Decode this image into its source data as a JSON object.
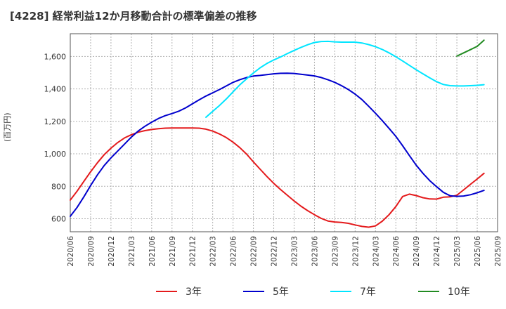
{
  "chart_data": {
    "type": "line",
    "title": "[4228]  経常利益12か月移動合計の標準偏差の推移",
    "ylabel": "(百万円)",
    "xlabel": "",
    "ylim": [
      520,
      1740
    ],
    "yticks": [
      600,
      800,
      1000,
      1200,
      1400,
      1600
    ],
    "ytick_labels": [
      "600",
      "800",
      "1,000",
      "1,200",
      "1,400",
      "1,600"
    ],
    "xticks": [
      "2020/06",
      "2020/09",
      "2020/12",
      "2021/03",
      "2021/06",
      "2021/09",
      "2021/12",
      "2022/03",
      "2022/06",
      "2022/09",
      "2022/12",
      "2023/03",
      "2023/06",
      "2023/09",
      "2023/12",
      "2024/03",
      "2024/06",
      "2024/09",
      "2024/12",
      "2025/03",
      "2025/06",
      "2025/09"
    ],
    "grid": true,
    "legend_position": "bottom",
    "series": [
      {
        "name": "3年",
        "color": "#e41a1c",
        "points": [
          [
            "2020/06",
            715
          ],
          [
            "2020/07",
            770
          ],
          [
            "2020/08",
            830
          ],
          [
            "2020/09",
            890
          ],
          [
            "2020/10",
            945
          ],
          [
            "2020/11",
            995
          ],
          [
            "2020/12",
            1035
          ],
          [
            "2021/01",
            1070
          ],
          [
            "2021/02",
            1098
          ],
          [
            "2021/03",
            1118
          ],
          [
            "2021/04",
            1133
          ],
          [
            "2021/05",
            1143
          ],
          [
            "2021/06",
            1150
          ],
          [
            "2021/07",
            1155
          ],
          [
            "2021/08",
            1158
          ],
          [
            "2021/09",
            1159
          ],
          [
            "2021/10",
            1159
          ],
          [
            "2021/11",
            1159
          ],
          [
            "2021/12",
            1159
          ],
          [
            "2022/01",
            1158
          ],
          [
            "2022/02",
            1152
          ],
          [
            "2022/03",
            1140
          ],
          [
            "2022/04",
            1122
          ],
          [
            "2022/05",
            1100
          ],
          [
            "2022/06",
            1072
          ],
          [
            "2022/07",
            1038
          ],
          [
            "2022/08",
            998
          ],
          [
            "2022/09",
            950
          ],
          [
            "2022/10",
            905
          ],
          [
            "2022/11",
            860
          ],
          [
            "2022/12",
            818
          ],
          [
            "2023/01",
            780
          ],
          [
            "2023/02",
            745
          ],
          [
            "2023/03",
            710
          ],
          [
            "2023/04",
            678
          ],
          [
            "2023/05",
            650
          ],
          [
            "2023/06",
            625
          ],
          [
            "2023/07",
            602
          ],
          [
            "2023/08",
            586
          ],
          [
            "2023/09",
            580
          ],
          [
            "2023/10",
            577
          ],
          [
            "2023/11",
            572
          ],
          [
            "2023/12",
            562
          ],
          [
            "2024/01",
            553
          ],
          [
            "2024/02",
            548
          ],
          [
            "2024/03",
            556
          ],
          [
            "2024/04",
            585
          ],
          [
            "2024/05",
            625
          ],
          [
            "2024/06",
            675
          ],
          [
            "2024/07",
            737
          ],
          [
            "2024/08",
            752
          ],
          [
            "2024/09",
            743
          ],
          [
            "2024/10",
            730
          ],
          [
            "2024/11",
            722
          ],
          [
            "2024/12",
            721
          ],
          [
            "2025/01",
            733
          ],
          [
            "2025/02",
            735
          ],
          [
            "2025/03",
            745
          ],
          [
            "2025/04",
            778
          ],
          [
            "2025/05",
            812
          ],
          [
            "2025/06",
            845
          ],
          [
            "2025/07",
            880
          ]
        ]
      },
      {
        "name": "5年",
        "color": "#0000cd",
        "points": [
          [
            "2020/06",
            615
          ],
          [
            "2020/07",
            670
          ],
          [
            "2020/08",
            735
          ],
          [
            "2020/09",
            805
          ],
          [
            "2020/10",
            870
          ],
          [
            "2020/11",
            928
          ],
          [
            "2020/12",
            975
          ],
          [
            "2021/01",
            1018
          ],
          [
            "2021/02",
            1060
          ],
          [
            "2021/03",
            1103
          ],
          [
            "2021/04",
            1140
          ],
          [
            "2021/05",
            1170
          ],
          [
            "2021/06",
            1195
          ],
          [
            "2021/07",
            1218
          ],
          [
            "2021/08",
            1235
          ],
          [
            "2021/09",
            1248
          ],
          [
            "2021/10",
            1263
          ],
          [
            "2021/11",
            1283
          ],
          [
            "2021/12",
            1308
          ],
          [
            "2022/01",
            1333
          ],
          [
            "2022/02",
            1356
          ],
          [
            "2022/03",
            1376
          ],
          [
            "2022/04",
            1396
          ],
          [
            "2022/05",
            1418
          ],
          [
            "2022/06",
            1440
          ],
          [
            "2022/07",
            1457
          ],
          [
            "2022/08",
            1470
          ],
          [
            "2022/09",
            1479
          ],
          [
            "2022/10",
            1483
          ],
          [
            "2022/11",
            1488
          ],
          [
            "2022/12",
            1493
          ],
          [
            "2023/01",
            1496
          ],
          [
            "2023/02",
            1497
          ],
          [
            "2023/03",
            1495
          ],
          [
            "2023/04",
            1490
          ],
          [
            "2023/05",
            1485
          ],
          [
            "2023/06",
            1480
          ],
          [
            "2023/07",
            1470
          ],
          [
            "2023/08",
            1456
          ],
          [
            "2023/09",
            1440
          ],
          [
            "2023/10",
            1420
          ],
          [
            "2023/11",
            1396
          ],
          [
            "2023/12",
            1368
          ],
          [
            "2024/01",
            1334
          ],
          [
            "2024/02",
            1293
          ],
          [
            "2024/03",
            1250
          ],
          [
            "2024/04",
            1205
          ],
          [
            "2024/05",
            1157
          ],
          [
            "2024/06",
            1108
          ],
          [
            "2024/07",
            1050
          ],
          [
            "2024/08",
            990
          ],
          [
            "2024/09",
            930
          ],
          [
            "2024/10",
            880
          ],
          [
            "2024/11",
            835
          ],
          [
            "2024/12",
            798
          ],
          [
            "2025/01",
            763
          ],
          [
            "2025/02",
            742
          ],
          [
            "2025/03",
            738
          ],
          [
            "2025/04",
            740
          ],
          [
            "2025/05",
            748
          ],
          [
            "2025/06",
            760
          ],
          [
            "2025/07",
            775
          ]
        ]
      },
      {
        "name": "7年",
        "color": "#00e5ff",
        "points": [
          [
            "2022/02",
            1225
          ],
          [
            "2022/03",
            1262
          ],
          [
            "2022/04",
            1298
          ],
          [
            "2022/05",
            1338
          ],
          [
            "2022/06",
            1382
          ],
          [
            "2022/07",
            1425
          ],
          [
            "2022/08",
            1462
          ],
          [
            "2022/09",
            1498
          ],
          [
            "2022/10",
            1530
          ],
          [
            "2022/11",
            1557
          ],
          [
            "2022/12",
            1578
          ],
          [
            "2023/01",
            1597
          ],
          [
            "2023/02",
            1617
          ],
          [
            "2023/03",
            1637
          ],
          [
            "2023/04",
            1655
          ],
          [
            "2023/05",
            1672
          ],
          [
            "2023/06",
            1686
          ],
          [
            "2023/07",
            1692
          ],
          [
            "2023/08",
            1693
          ],
          [
            "2023/09",
            1690
          ],
          [
            "2023/10",
            1688
          ],
          [
            "2023/11",
            1688
          ],
          [
            "2023/12",
            1688
          ],
          [
            "2024/01",
            1683
          ],
          [
            "2024/02",
            1673
          ],
          [
            "2024/03",
            1660
          ],
          [
            "2024/04",
            1643
          ],
          [
            "2024/05",
            1622
          ],
          [
            "2024/06",
            1598
          ],
          [
            "2024/07",
            1572
          ],
          [
            "2024/08",
            1545
          ],
          [
            "2024/09",
            1518
          ],
          [
            "2024/10",
            1493
          ],
          [
            "2024/11",
            1468
          ],
          [
            "2024/12",
            1445
          ],
          [
            "2025/01",
            1427
          ],
          [
            "2025/02",
            1420
          ],
          [
            "2025/03",
            1418
          ],
          [
            "2025/04",
            1418
          ],
          [
            "2025/05",
            1420
          ],
          [
            "2025/06",
            1422
          ],
          [
            "2025/07",
            1426
          ]
        ]
      },
      {
        "name": "10年",
        "color": "#228b22",
        "points": [
          [
            "2025/03",
            1602
          ],
          [
            "2025/04",
            1622
          ],
          [
            "2025/05",
            1642
          ],
          [
            "2025/06",
            1662
          ],
          [
            "2025/07",
            1700
          ]
        ]
      }
    ]
  }
}
